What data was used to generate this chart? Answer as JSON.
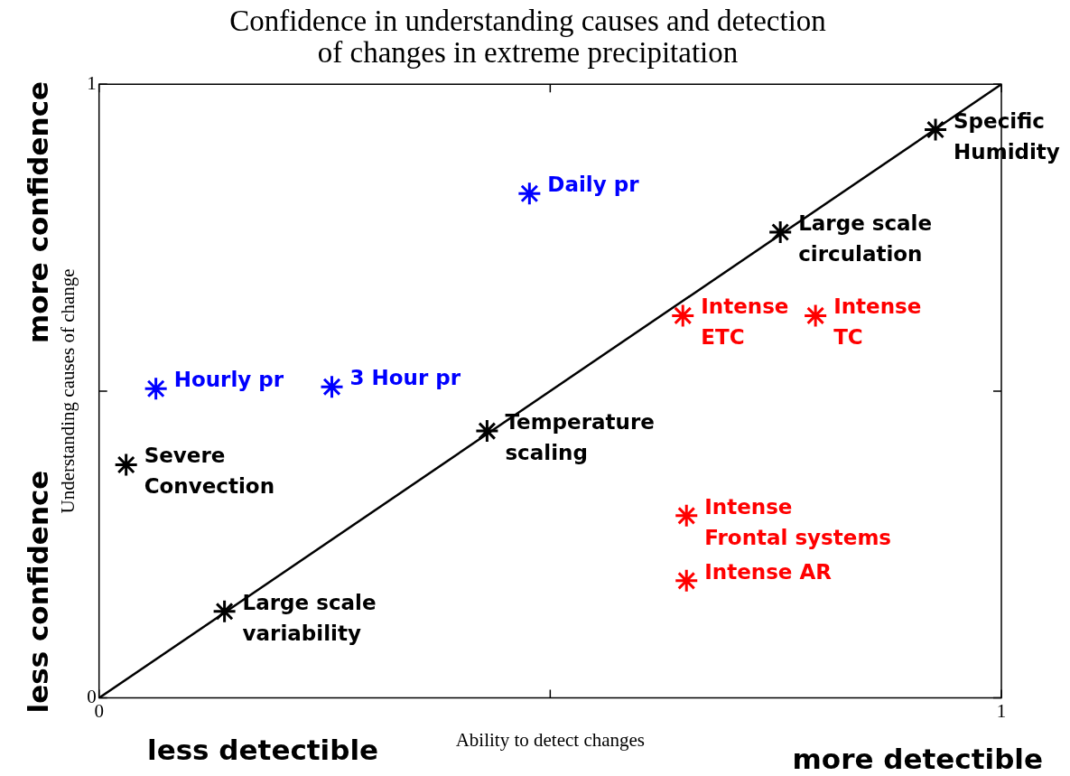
{
  "chart_data": {
    "type": "scatter",
    "title": "Confidence in understanding causes and detection\nof changes in extreme precipitation",
    "xlabel": "Ability to detect changes",
    "ylabel": "Understanding causes of change",
    "xlim": [
      0,
      1
    ],
    "ylim": [
      0,
      1
    ],
    "xticks": [
      0,
      {
        "value": 0.5,
        "label": null
      },
      1
    ],
    "yticks": [
      0,
      {
        "value": 0.5,
        "label": null
      },
      1
    ],
    "grid": false,
    "legend": false,
    "marker": "cross",
    "series": [
      {
        "type": "line",
        "color": "#000000",
        "marker": "none",
        "line_style": "solid",
        "x": [
          0,
          1
        ],
        "values": [
          0,
          1
        ]
      },
      {
        "color": "#000000",
        "x": [
          0.927,
          0.755,
          0.43,
          0.139,
          0.03
        ],
        "values": [
          0.926,
          0.759,
          0.435,
          0.141,
          0.38
        ]
      },
      {
        "color": "#0000ff",
        "x": [
          0.063,
          0.258,
          0.477
        ],
        "values": [
          0.504,
          0.507,
          0.822
        ]
      },
      {
        "color": "#ff0000",
        "x": [
          0.647,
          0.794,
          0.651,
          0.651
        ],
        "values": [
          0.623,
          0.623,
          0.297,
          0.191
        ]
      }
    ],
    "annotations": [
      {
        "text": "Specific\nHumidity",
        "x": 0.927,
        "y": 0.926
      },
      {
        "text": "Large scale\ncirculation",
        "x": 0.755,
        "y": 0.759
      },
      {
        "text": "Temperature\nscaling",
        "x": 0.43,
        "y": 0.435
      },
      {
        "text": "Large scale\nvariability",
        "x": 0.139,
        "y": 0.141
      },
      {
        "text": "Severe\nConvection",
        "x": 0.03,
        "y": 0.38
      },
      {
        "text": "Hourly pr",
        "x": 0.063,
        "y": 0.504
      },
      {
        "text": "3 Hour pr",
        "x": 0.258,
        "y": 0.507
      },
      {
        "text": "Daily pr",
        "x": 0.477,
        "y": 0.822
      },
      {
        "text": "Intense\nETC",
        "x": 0.647,
        "y": 0.623
      },
      {
        "text": "Intense\nTC",
        "x": 0.794,
        "y": 0.623
      },
      {
        "text": "Intense\nFrontal systems",
        "x": 0.651,
        "y": 0.297
      },
      {
        "text": "Intense AR",
        "x": 0.651,
        "y": 0.191
      },
      "more confidence",
      "less confidence",
      "less detectible",
      "more detectible"
    ]
  }
}
